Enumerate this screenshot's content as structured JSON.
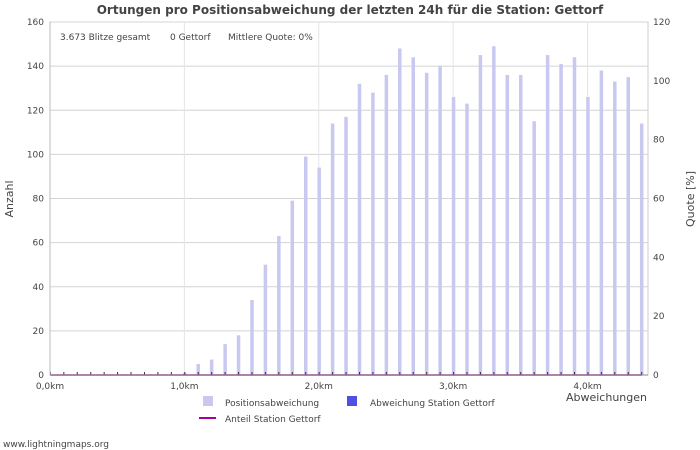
{
  "chart_data": {
    "type": "bar",
    "title": "Ortungen pro Positionsabweichung der letzten 24h für die Station: Gettorf",
    "summary": {
      "total": "3.673 Blitze gesamt",
      "station": "0 Gettorf",
      "quota": "Mittlere Quote:  0%"
    },
    "ylabel": "Anzahl",
    "y2label": "Quote  [%]",
    "xlabel": "Abweichungen",
    "ylim": [
      0,
      160
    ],
    "y2lim": [
      0,
      120
    ],
    "xlim_km": [
      0,
      4.45
    ],
    "y_ticks": [
      0,
      20,
      40,
      60,
      80,
      100,
      120,
      140,
      160
    ],
    "y2_ticks": [
      0,
      20,
      40,
      60,
      80,
      100,
      120
    ],
    "x_ticks": [
      {
        "value": 0,
        "label": "0,0km"
      },
      {
        "value": 1,
        "label": "1,0km"
      },
      {
        "value": 2,
        "label": "2,0km"
      },
      {
        "value": 3,
        "label": "3,0km"
      },
      {
        "value": 4,
        "label": "4,0km"
      }
    ],
    "bin_width_km": 0.1,
    "series": [
      {
        "name": "Positionsabweichung",
        "color": "#c8c8f0",
        "values": [
          0,
          0,
          0,
          0,
          0,
          0,
          0,
          0,
          0,
          0,
          1,
          5,
          7,
          14,
          18,
          34,
          50,
          63,
          79,
          99,
          94,
          114,
          117,
          132,
          128,
          136,
          148,
          144,
          137,
          140,
          126,
          123,
          145,
          149,
          136,
          136,
          115,
          145,
          141,
          144,
          126,
          138,
          133,
          135,
          114
        ]
      },
      {
        "name": "Abweichung Station Gettorf",
        "color": "#5050e0",
        "values": [
          0,
          0,
          0,
          0,
          0,
          0,
          0,
          0,
          0,
          0,
          0,
          0,
          0,
          0,
          0,
          0,
          0,
          0,
          0,
          0,
          0,
          0,
          0,
          0,
          0,
          0,
          0,
          0,
          0,
          0,
          0,
          0,
          0,
          0,
          0,
          0,
          0,
          0,
          0,
          0,
          0,
          0,
          0,
          0,
          0
        ]
      },
      {
        "name": "Anteil Station Gettorf",
        "color": "#a000a0",
        "values": [
          0,
          0,
          0,
          0,
          0,
          0,
          0,
          0,
          0,
          0,
          0,
          0,
          0,
          0,
          0,
          0,
          0,
          0,
          0,
          0,
          0,
          0,
          0,
          0,
          0,
          0,
          0,
          0,
          0,
          0,
          0,
          0,
          0,
          0,
          0,
          0,
          0,
          0,
          0,
          0,
          0,
          0,
          0,
          0,
          0
        ]
      }
    ],
    "legend": [
      {
        "label": "Positionsabweichung",
        "kind": "box",
        "color": "#c8c8f0"
      },
      {
        "label": "Abweichung Station Gettorf",
        "kind": "box",
        "color": "#5050e0"
      },
      {
        "label": "Anteil Station Gettorf",
        "kind": "line",
        "color": "#a000a0"
      }
    ],
    "credit": "www.lightningmaps.org"
  }
}
